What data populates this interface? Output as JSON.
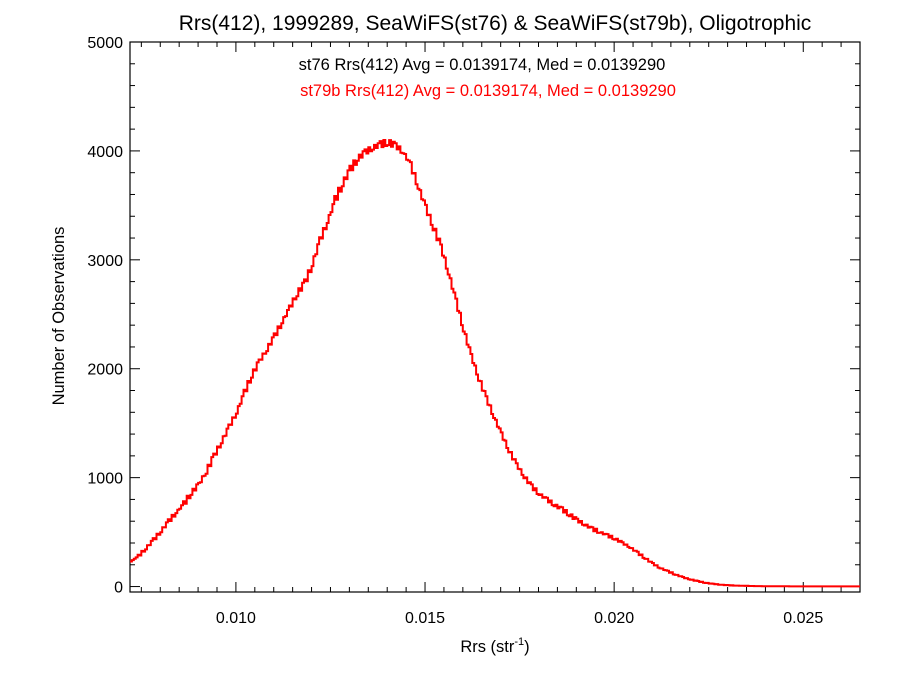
{
  "chart_data": {
    "type": "line",
    "title": "Rrs(412), 1999289, SeaWiFS(st76) & SeaWiFS(st79b), Oligotrophic",
    "xlabel": "Rrs (str",
    "xlabel_superscript": "-1",
    "xlabel_suffix": ")",
    "ylabel": "Number of Observations",
    "xlim": [
      0.0072,
      0.0265
    ],
    "ylim": [
      -50,
      5000
    ],
    "x_ticks": [
      0.01,
      0.015,
      0.02,
      0.025
    ],
    "x_tick_labels": [
      "0.010",
      "0.015",
      "0.020",
      "0.025"
    ],
    "y_ticks": [
      0,
      1000,
      2000,
      3000,
      4000,
      5000
    ],
    "y_tick_labels": [
      "0",
      "1000",
      "2000",
      "3000",
      "4000",
      "5000"
    ],
    "grid": false,
    "annotations": [
      {
        "text": "st76 Rrs(412) Avg = 0.0139174, Med = 0.0139290",
        "color": "#000000"
      },
      {
        "text": "st79b Rrs(412) Avg = 0.0139174, Med = 0.0139290",
        "color": "#ff0000"
      }
    ],
    "series": [
      {
        "color": "#ff0000",
        "style": "step",
        "x": [
          0.0072,
          0.0074,
          0.0076,
          0.0078,
          0.008,
          0.0082,
          0.0084,
          0.0086,
          0.0088,
          0.009,
          0.0092,
          0.0094,
          0.0096,
          0.0098,
          0.01,
          0.0102,
          0.0104,
          0.0106,
          0.0108,
          0.011,
          0.0112,
          0.0114,
          0.0116,
          0.0118,
          0.012,
          0.0122,
          0.0124,
          0.0126,
          0.0128,
          0.013,
          0.0132,
          0.0134,
          0.0136,
          0.0138,
          0.014,
          0.0142,
          0.0144,
          0.0146,
          0.0148,
          0.015,
          0.0152,
          0.0154,
          0.0156,
          0.0158,
          0.016,
          0.0162,
          0.0164,
          0.0166,
          0.0168,
          0.017,
          0.0172,
          0.0174,
          0.0176,
          0.0178,
          0.018,
          0.0182,
          0.0184,
          0.0186,
          0.0188,
          0.019,
          0.0192,
          0.0194,
          0.0196,
          0.0198,
          0.02,
          0.0202,
          0.0204,
          0.0206,
          0.0208,
          0.021,
          0.0212,
          0.0214,
          0.0216,
          0.0218,
          0.022,
          0.0222,
          0.0224,
          0.0226,
          0.0228,
          0.023,
          0.0232,
          0.0234,
          0.0236,
          0.0238,
          0.024,
          0.0245,
          0.025,
          0.0255,
          0.026,
          0.0265
        ],
        "values": [
          230,
          280,
          350,
          430,
          510,
          600,
          680,
          760,
          860,
          940,
          1060,
          1200,
          1330,
          1470,
          1600,
          1780,
          1940,
          2070,
          2180,
          2300,
          2430,
          2560,
          2690,
          2790,
          2960,
          3180,
          3350,
          3550,
          3700,
          3830,
          3930,
          3990,
          4030,
          4060,
          4080,
          4050,
          3990,
          3870,
          3670,
          3480,
          3300,
          3120,
          2880,
          2620,
          2360,
          2120,
          1910,
          1730,
          1560,
          1400,
          1250,
          1120,
          1010,
          920,
          850,
          800,
          750,
          710,
          660,
          610,
          570,
          530,
          500,
          470,
          440,
          400,
          360,
          310,
          260,
          210,
          170,
          140,
          110,
          85,
          65,
          48,
          34,
          24,
          17,
          12,
          9,
          7,
          5,
          4,
          3,
          2,
          1,
          1,
          1,
          1
        ],
        "noise": [
          0,
          20,
          -15,
          25,
          -20,
          30,
          -10,
          40,
          -30,
          20,
          -40,
          35,
          -25,
          30,
          -20,
          45,
          -35,
          25,
          -30,
          40,
          -20,
          35,
          -40,
          50,
          -30,
          45,
          -20,
          60,
          -40,
          55,
          -35,
          40,
          -30,
          50,
          -45,
          35,
          -20,
          45,
          -30,
          40,
          -50,
          35,
          -25,
          40,
          -30,
          25,
          -35,
          30,
          -20,
          25,
          -30,
          20,
          -25,
          30,
          -15,
          25,
          -20,
          30,
          -25,
          20,
          -15,
          25,
          -10,
          20,
          -15,
          10,
          -10,
          15,
          -10,
          10,
          -5,
          10,
          -5,
          5,
          -5,
          5,
          -3,
          3,
          -2,
          2,
          -1,
          1,
          0,
          0,
          0,
          0,
          0,
          0,
          0,
          0
        ]
      }
    ]
  }
}
